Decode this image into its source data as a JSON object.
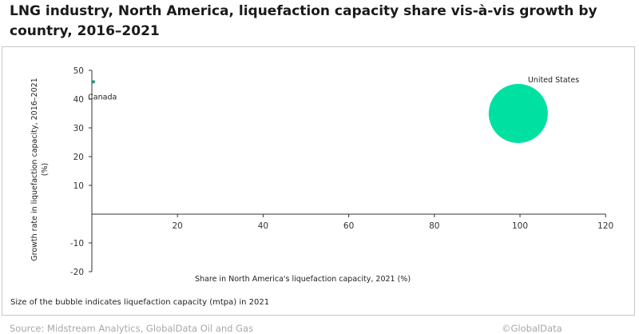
{
  "title": "LNG industry, North America, liquefaction capacity share vis-à-vis growth by country, 2016–2021",
  "note": "Size of the bubble indicates liquefaction capacity (mtpa) in 2021",
  "source": "Source: Midstream Analytics, GlobalData Oil and Gas",
  "copyright": "©GlobalData",
  "chart_data": {
    "type": "scatter",
    "title": "LNG industry, North America, liquefaction capacity share vis-à-vis growth by country, 2016–2021",
    "xlabel": "Share in North America's liquefaction capacity, 2021 (%)",
    "ylabel": "Growth rate in liquefaction capacity, 2016–2021 (%)",
    "xlim": [
      0,
      120
    ],
    "ylim": [
      -20,
      50
    ],
    "x_ticks": [
      20,
      40,
      60,
      80,
      100,
      120
    ],
    "y_ticks": [
      50,
      40,
      30,
      20,
      10,
      -10,
      -20
    ],
    "grid": false,
    "legend": "none",
    "points": [
      {
        "label": "Canada",
        "x": 0.4,
        "y": 46,
        "size": 0.2,
        "color": "#1f9e89"
      },
      {
        "label": "United States",
        "x": 99.6,
        "y": 35,
        "size": 70,
        "color": "#00e0a0"
      }
    ]
  }
}
